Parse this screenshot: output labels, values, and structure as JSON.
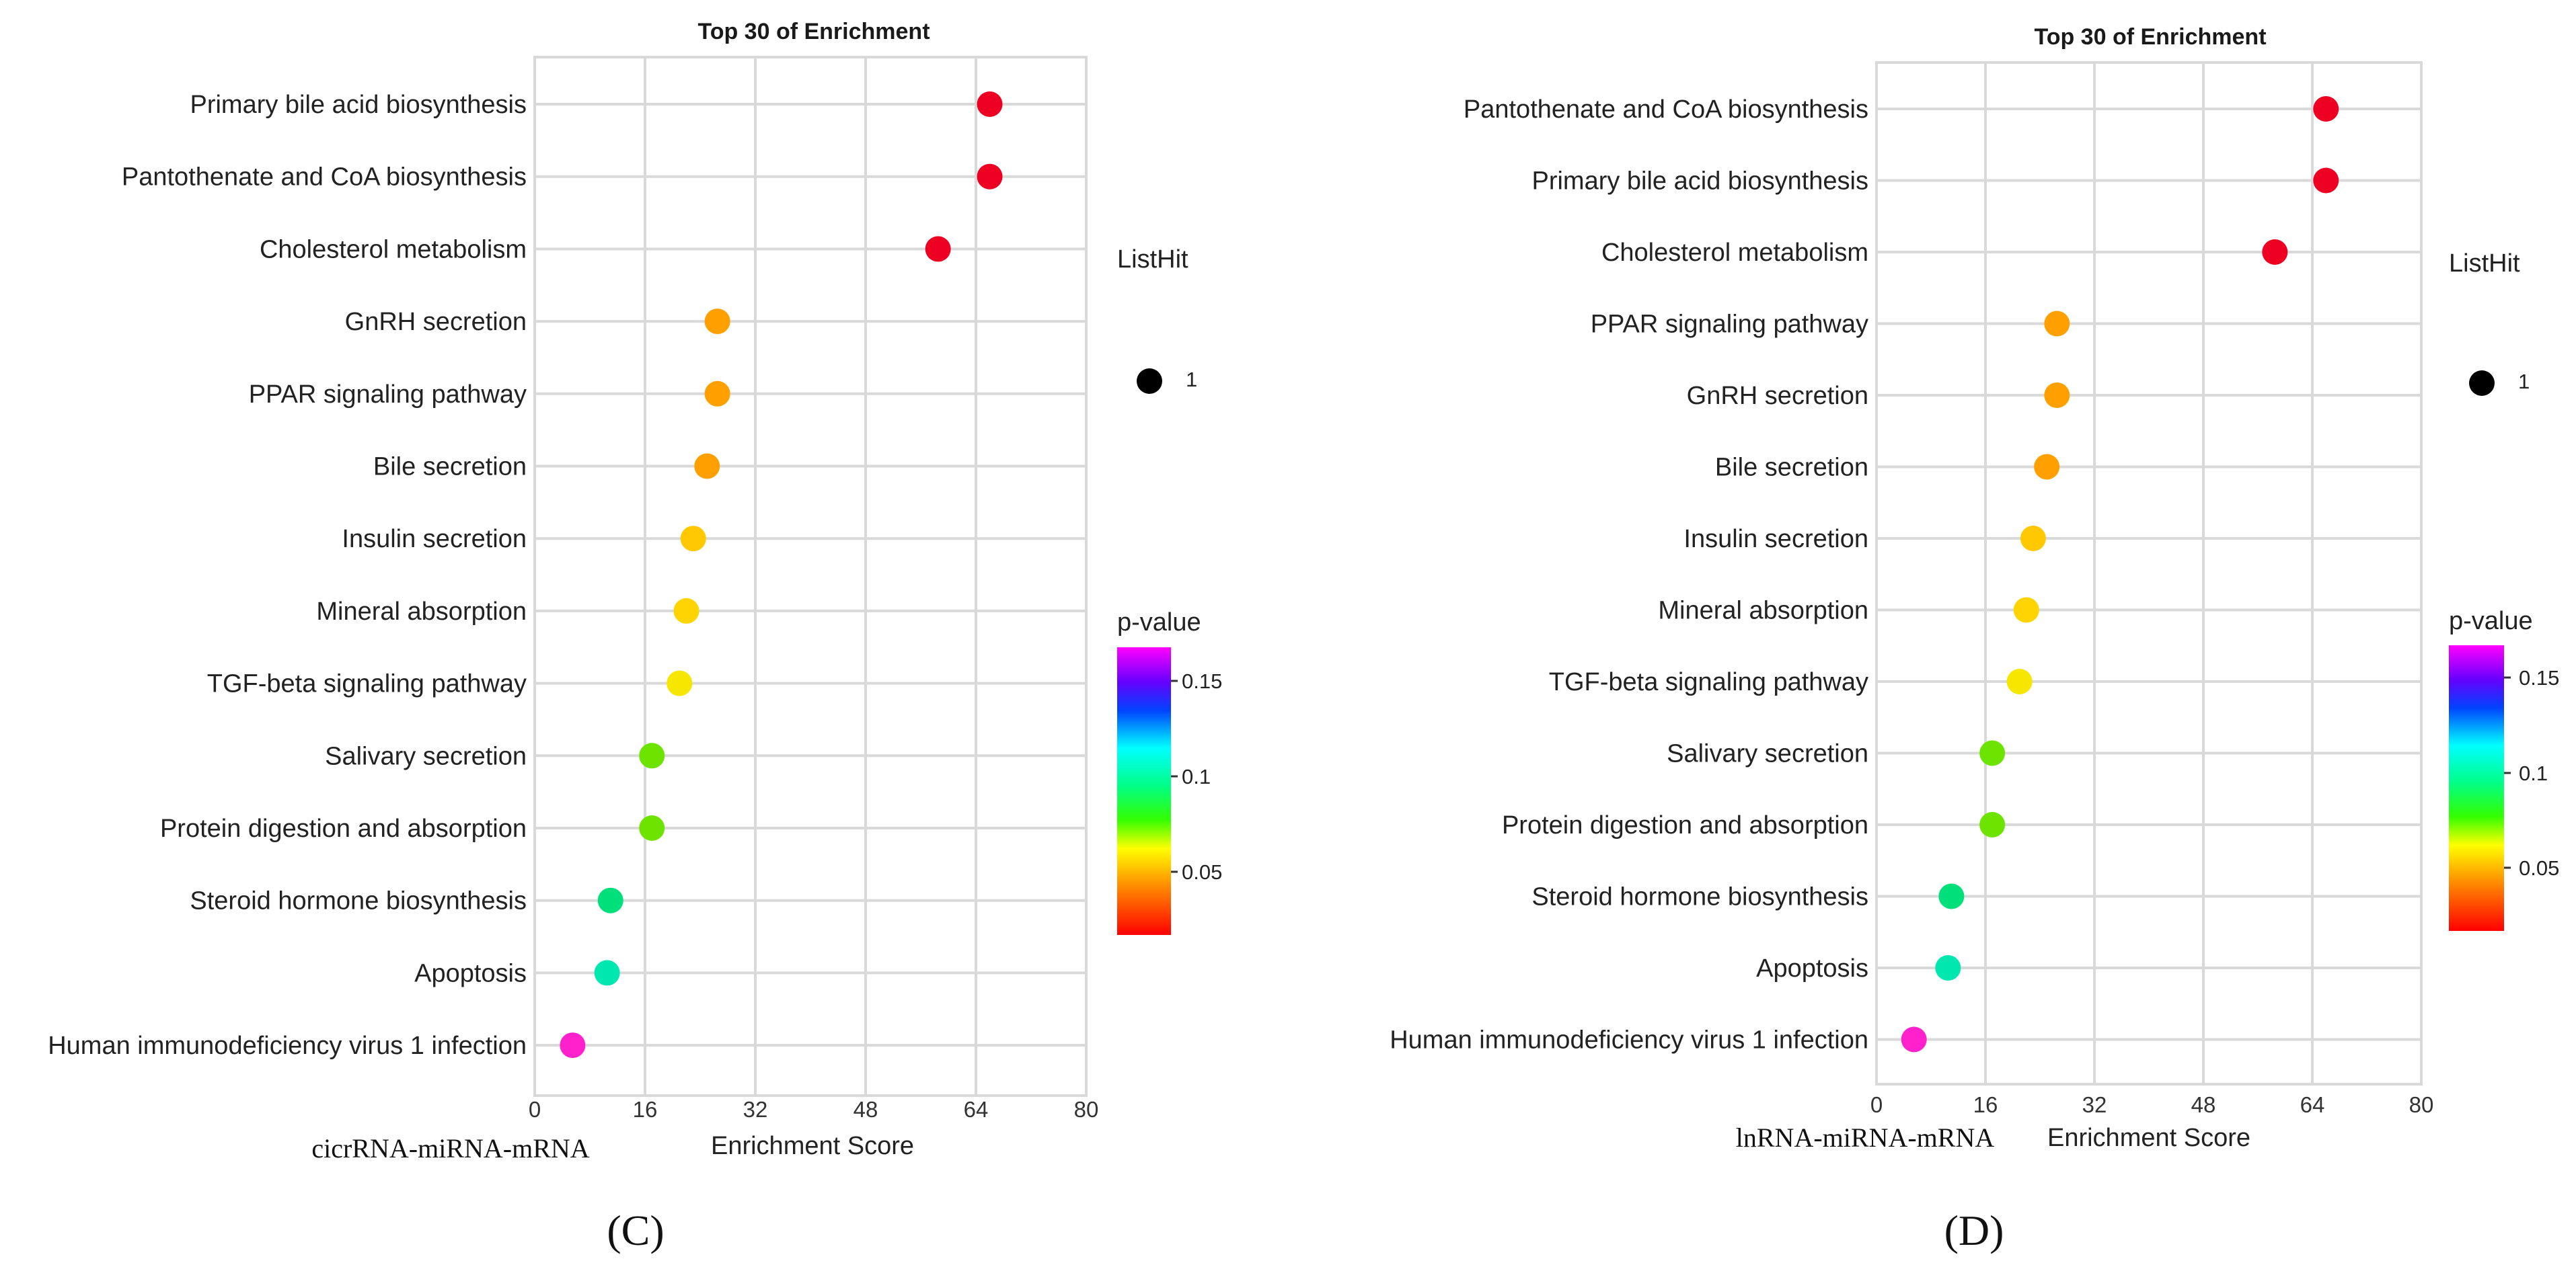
{
  "chart_data": [
    {
      "type": "scatter",
      "panel_label": "(C)",
      "title": "Top 30 of  Enrichment",
      "xlabel": "Enrichment Score",
      "network_label": "cicrRNA-miRNA-mRNA",
      "xlim": [
        0,
        80
      ],
      "xticks": [
        0,
        16,
        32,
        48,
        64,
        80
      ],
      "categories": [
        "Primary bile acid biosynthesis",
        "Pantothenate and CoA biosynthesis",
        "Cholesterol metabolism",
        "GnRH secretion",
        "PPAR signaling pathway",
        "Bile secretion",
        "Insulin secretion",
        "Mineral absorption",
        "TGF-beta signaling pathway",
        "Salivary secretion",
        "Protein digestion and absorption",
        "Steroid hormone biosynthesis",
        "Apoptosis",
        "Human immunodeficiency virus 1 infection"
      ],
      "values": [
        66,
        66,
        58.5,
        26.5,
        26.5,
        25,
        23,
        22,
        21,
        17,
        17,
        11,
        10.5,
        5.5
      ],
      "colors": [
        "#ee0022",
        "#ee0022",
        "#ee0022",
        "#ffa000",
        "#ffa000",
        "#ffa000",
        "#ffc800",
        "#ffd400",
        "#f6e600",
        "#6de400",
        "#6de400",
        "#00e07a",
        "#00e8b0",
        "#ff22cc"
      ],
      "size_legend": {
        "title": "ListHit",
        "label": "1"
      },
      "color_legend": {
        "title": "p-value",
        "ticks": [
          "0.15",
          "0.1",
          "0.05"
        ]
      }
    },
    {
      "type": "scatter",
      "panel_label": "(D)",
      "title": "Top 30 of  Enrichment",
      "xlabel": "Enrichment Score",
      "network_label": "lnRNA-miRNA-mRNA",
      "xlim": [
        0,
        80
      ],
      "xticks": [
        0,
        16,
        32,
        48,
        64,
        80
      ],
      "categories": [
        "Pantothenate and CoA biosynthesis",
        "Primary bile acid biosynthesis",
        "Cholesterol metabolism",
        "PPAR signaling pathway",
        "GnRH secretion",
        "Bile secretion",
        "Insulin secretion",
        "Mineral absorption",
        "TGF-beta signaling pathway",
        "Salivary secretion",
        "Protein digestion and absorption",
        "Steroid hormone biosynthesis",
        "Apoptosis",
        "Human immunodeficiency virus 1 infection"
      ],
      "values": [
        66,
        66,
        58.5,
        26.5,
        26.5,
        25,
        23,
        22,
        21,
        17,
        17,
        11,
        10.5,
        5.5
      ],
      "colors": [
        "#ee0022",
        "#ee0022",
        "#ee0022",
        "#ffa000",
        "#ffa000",
        "#ffa000",
        "#ffc800",
        "#ffd400",
        "#f6e600",
        "#6de400",
        "#6de400",
        "#00e07a",
        "#00e8b0",
        "#ff22cc"
      ],
      "size_legend": {
        "title": "ListHit",
        "label": "1"
      },
      "color_legend": {
        "title": "p-value",
        "ticks": [
          "0.15",
          "0.1",
          "0.05"
        ]
      }
    }
  ]
}
